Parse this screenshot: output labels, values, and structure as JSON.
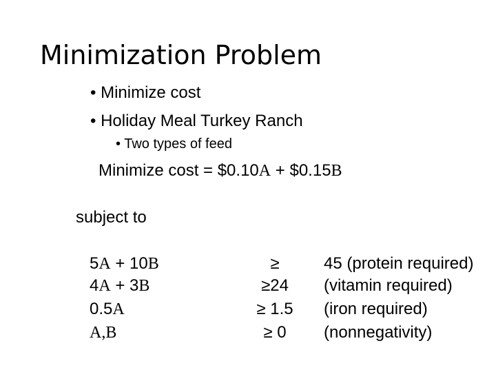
{
  "slide": {
    "title": "Minimization Problem",
    "bullets": [
      {
        "marker": "•",
        "text": "Minimize cost"
      },
      {
        "marker": "•",
        "text": "Holiday Meal Turkey Ranch"
      }
    ],
    "sub_bullets": [
      {
        "marker": "•",
        "text": "Two types of feed"
      }
    ],
    "objective": {
      "prefix": "Minimize cost  =  $0.10",
      "var_a": "A",
      "middle": " + $0.15",
      "var_b": "B"
    },
    "subject_to": "subject to",
    "constraints": [
      {
        "lhs": [
          {
            "t": "5",
            "v": false
          },
          {
            "t": "A",
            "v": true
          },
          {
            "t": " + 10",
            "v": false
          },
          {
            "t": "B",
            "v": true
          }
        ],
        "rel": "≥",
        "rhs": "45     (protein required)"
      },
      {
        "lhs": [
          {
            "t": "4",
            "v": false
          },
          {
            "t": "A",
            "v": true
          },
          {
            "t": " + 3",
            "v": false
          },
          {
            "t": "B",
            "v": true
          }
        ],
        "rel": "≥24",
        "rhs": "(vitamin required)"
      },
      {
        "lhs": [
          {
            "t": "0.5",
            "v": false
          },
          {
            "t": "A",
            "v": true
          }
        ],
        "rel": "≥ 1.5",
        "rhs": "(iron required)"
      },
      {
        "lhs": [
          {
            "t": "A,B",
            "v": true
          }
        ],
        "rel": "≥ 0",
        "rhs": "(nonnegativity)"
      }
    ]
  }
}
